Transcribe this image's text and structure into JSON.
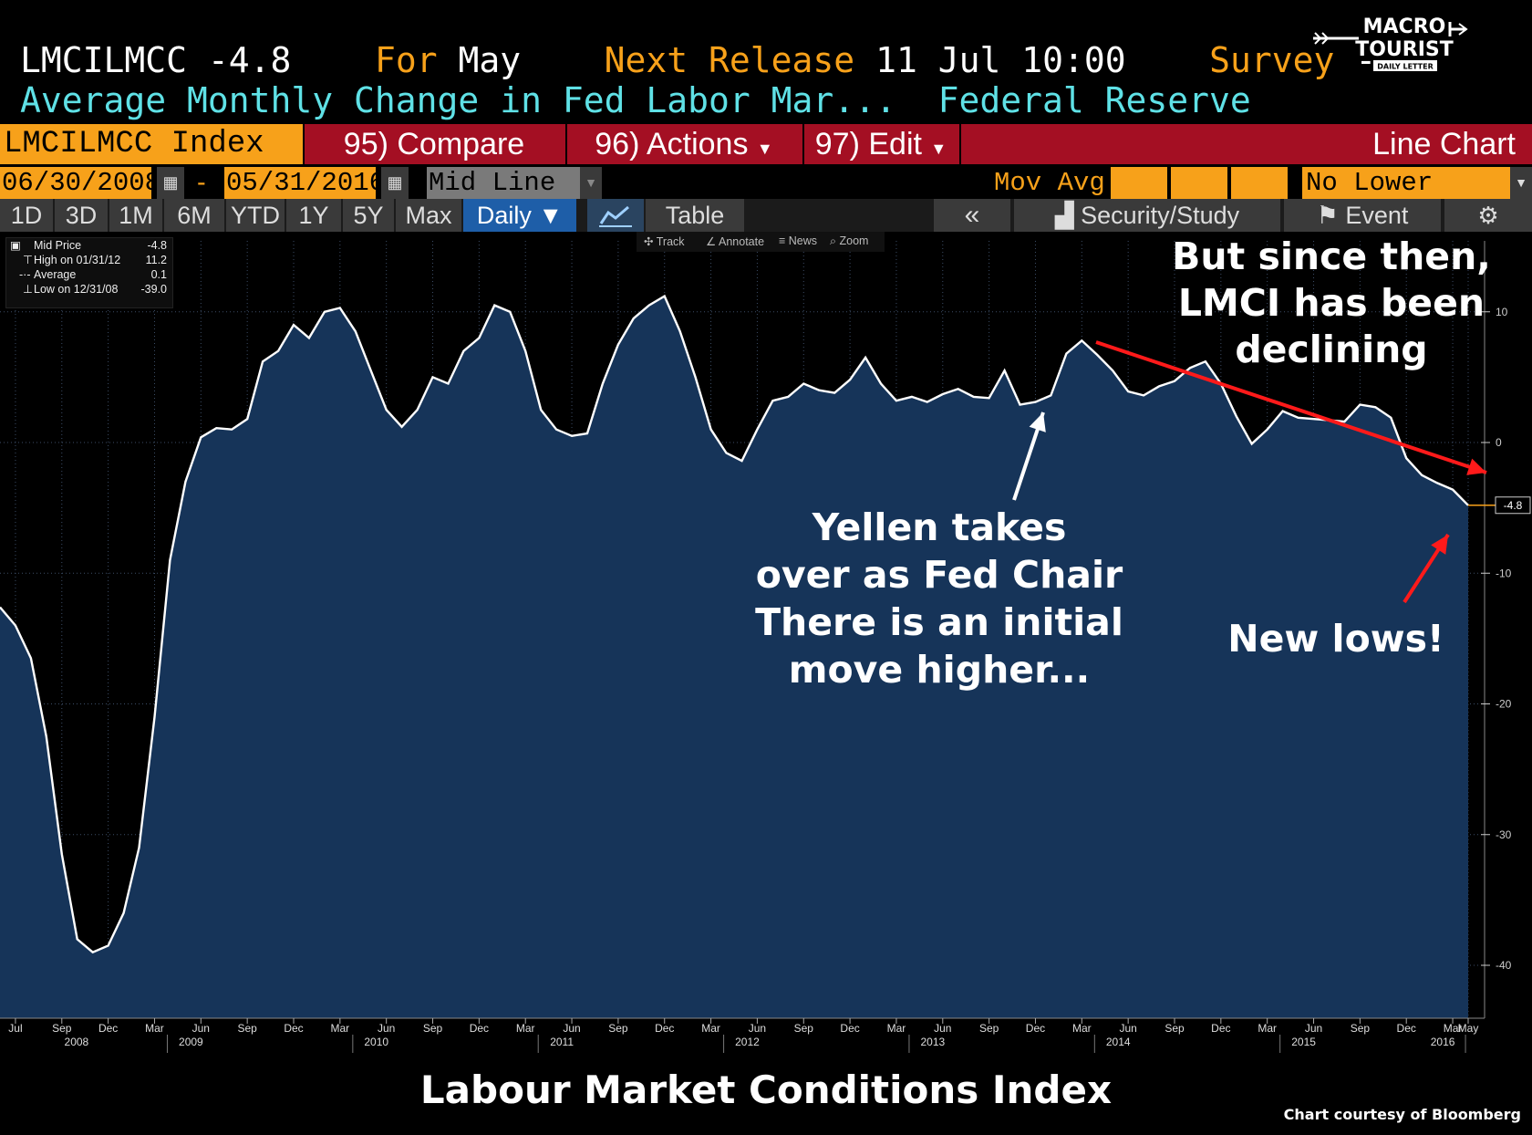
{
  "header": {
    "ticker": "LMCILMCC",
    "last": "-4.8",
    "for_label": "For",
    "for_value": "May",
    "next_release_label": "Next Release",
    "next_release_value": "11 Jul 10:00",
    "survey_label": "Survey",
    "survey_value": "--",
    "description": "Average Monthly Change in Fed Labor Mar...",
    "source": "Federal Reserve"
  },
  "logo": {
    "line1": "MACRO",
    "line2": "TOURIST",
    "tagline": "DAILY LETTER"
  },
  "toolbar": {
    "security": "LMCILMCC Index",
    "compare": "95) Compare",
    "actions": "96) Actions",
    "edit": "97) Edit",
    "chart_type": "Line Chart"
  },
  "range_bar": {
    "start_date": "06/30/2008",
    "dash": "-",
    "end_date": "05/31/2016",
    "line_type": "Mid Line",
    "mov_avg": "Mov Avg",
    "lower_chart": "No Lower Chart"
  },
  "period_bar": {
    "periods": [
      "1D",
      "3D",
      "1M",
      "6M",
      "YTD",
      "1Y",
      "5Y",
      "Max"
    ],
    "frequency": "Daily ▼",
    "table": "Table",
    "security_study": "Security/Study",
    "event": "Event"
  },
  "mini_toolbar": {
    "track": "Track",
    "annotate": "Annotate",
    "news": "News",
    "zoom": "Zoom"
  },
  "legend": {
    "mid_label": "Mid Price",
    "mid_value": "-4.8",
    "high_label": "High on 01/31/12",
    "high_value": "11.2",
    "avg_label": "Average",
    "avg_value": "0.1",
    "low_label": "Low on 12/31/08",
    "low_value": "-39.0"
  },
  "annotations": {
    "since_then": [
      "But since then,",
      "LMCI has been",
      "declining"
    ],
    "yellen": [
      "Yellen takes",
      "over as Fed Chair",
      "There is an initial",
      "move higher..."
    ],
    "new_lows": "New lows!"
  },
  "footer": {
    "title": "Labour Market Conditions Index",
    "credit": "Chart courtesy of Bloomberg"
  },
  "colors": {
    "area_fill": "#163459",
    "line": "#ffffff",
    "arrow_red": "#ff1a1a",
    "accent_orange": "#f7a11a",
    "toolbar_red": "#a40f23"
  },
  "chart_data": {
    "type": "area",
    "title": "Labour Market Conditions Index",
    "series": [
      {
        "name": "LMCILMCC Index",
        "x": [
          "2008-06",
          "2008-07",
          "2008-08",
          "2008-09",
          "2008-10",
          "2008-11",
          "2008-12",
          "2009-01",
          "2009-02",
          "2009-03",
          "2009-04",
          "2009-05",
          "2009-06",
          "2009-07",
          "2009-08",
          "2009-09",
          "2009-10",
          "2009-11",
          "2009-12",
          "2010-01",
          "2010-02",
          "2010-03",
          "2010-04",
          "2010-05",
          "2010-06",
          "2010-07",
          "2010-08",
          "2010-09",
          "2010-10",
          "2010-11",
          "2010-12",
          "2011-01",
          "2011-02",
          "2011-03",
          "2011-04",
          "2011-05",
          "2011-06",
          "2011-07",
          "2011-08",
          "2011-09",
          "2011-10",
          "2011-11",
          "2011-12",
          "2012-01",
          "2012-02",
          "2012-03",
          "2012-04",
          "2012-05",
          "2012-06",
          "2012-07",
          "2012-08",
          "2012-09",
          "2012-10",
          "2012-11",
          "2012-12",
          "2013-01",
          "2013-02",
          "2013-03",
          "2013-04",
          "2013-05",
          "2013-06",
          "2013-07",
          "2013-08",
          "2013-09",
          "2013-10",
          "2013-11",
          "2013-12",
          "2014-01",
          "2014-02",
          "2014-03",
          "2014-04",
          "2014-05",
          "2014-06",
          "2014-07",
          "2014-08",
          "2014-09",
          "2014-10",
          "2014-11",
          "2014-12",
          "2015-01",
          "2015-02",
          "2015-03",
          "2015-04",
          "2015-05",
          "2015-06",
          "2015-07",
          "2015-08",
          "2015-09",
          "2015-10",
          "2015-11",
          "2015-12",
          "2016-01",
          "2016-02",
          "2016-03",
          "2016-04",
          "2016-05"
        ],
        "values": [
          -12.6,
          -14.0,
          -16.5,
          -22.5,
          -31.5,
          -38.0,
          -39.0,
          -38.5,
          -36.0,
          -31.0,
          -21.0,
          -9.0,
          -3.0,
          0.4,
          1.1,
          1.0,
          1.8,
          6.2,
          7.0,
          9.0,
          8.0,
          10.0,
          10.3,
          8.5,
          5.5,
          2.5,
          1.2,
          2.5,
          5.0,
          4.5,
          7.0,
          8.0,
          10.5,
          10.0,
          7.0,
          2.5,
          1.0,
          0.5,
          0.7,
          4.5,
          7.5,
          9.5,
          10.5,
          11.2,
          8.5,
          5.0,
          1.0,
          -0.8,
          -1.4,
          1.0,
          3.2,
          3.5,
          4.5,
          4.0,
          3.8,
          4.8,
          6.5,
          4.5,
          3.2,
          3.5,
          3.1,
          3.7,
          4.1,
          3.5,
          3.4,
          5.5,
          2.9,
          3.1,
          3.6,
          6.8,
          7.8,
          6.7,
          5.5,
          3.9,
          3.6,
          4.3,
          4.7,
          5.7,
          6.2,
          4.5,
          2.0,
          -0.1,
          1.0,
          2.4,
          1.9,
          1.8,
          1.7,
          1.6,
          2.9,
          2.7,
          1.9,
          -1.2,
          -2.5,
          -3.1,
          -3.6,
          -4.8
        ]
      }
    ],
    "ylim": [
      -43,
      14
    ],
    "y_ticks": [
      10,
      0,
      -10,
      -20,
      -30,
      -40
    ],
    "x_month_ticks": [
      "Jul",
      "Sep",
      "Dec",
      "Mar",
      "Jun",
      "Sep",
      "Dec",
      "Mar",
      "Jun",
      "Sep",
      "Dec",
      "Mar",
      "Jun",
      "Sep",
      "Dec",
      "Mar",
      "Jun",
      "Sep",
      "Dec",
      "Mar",
      "Jun",
      "Sep",
      "Dec",
      "Mar",
      "Jun",
      "Sep",
      "Dec",
      "Mar",
      "Jun",
      "Sep",
      "Dec",
      "Mar",
      "May"
    ],
    "x_year_ticks": [
      "2008",
      "2009",
      "2010",
      "2011",
      "2012",
      "2013",
      "2014",
      "2015",
      "2016"
    ],
    "last_value_label": "-4.8",
    "grid": true
  }
}
